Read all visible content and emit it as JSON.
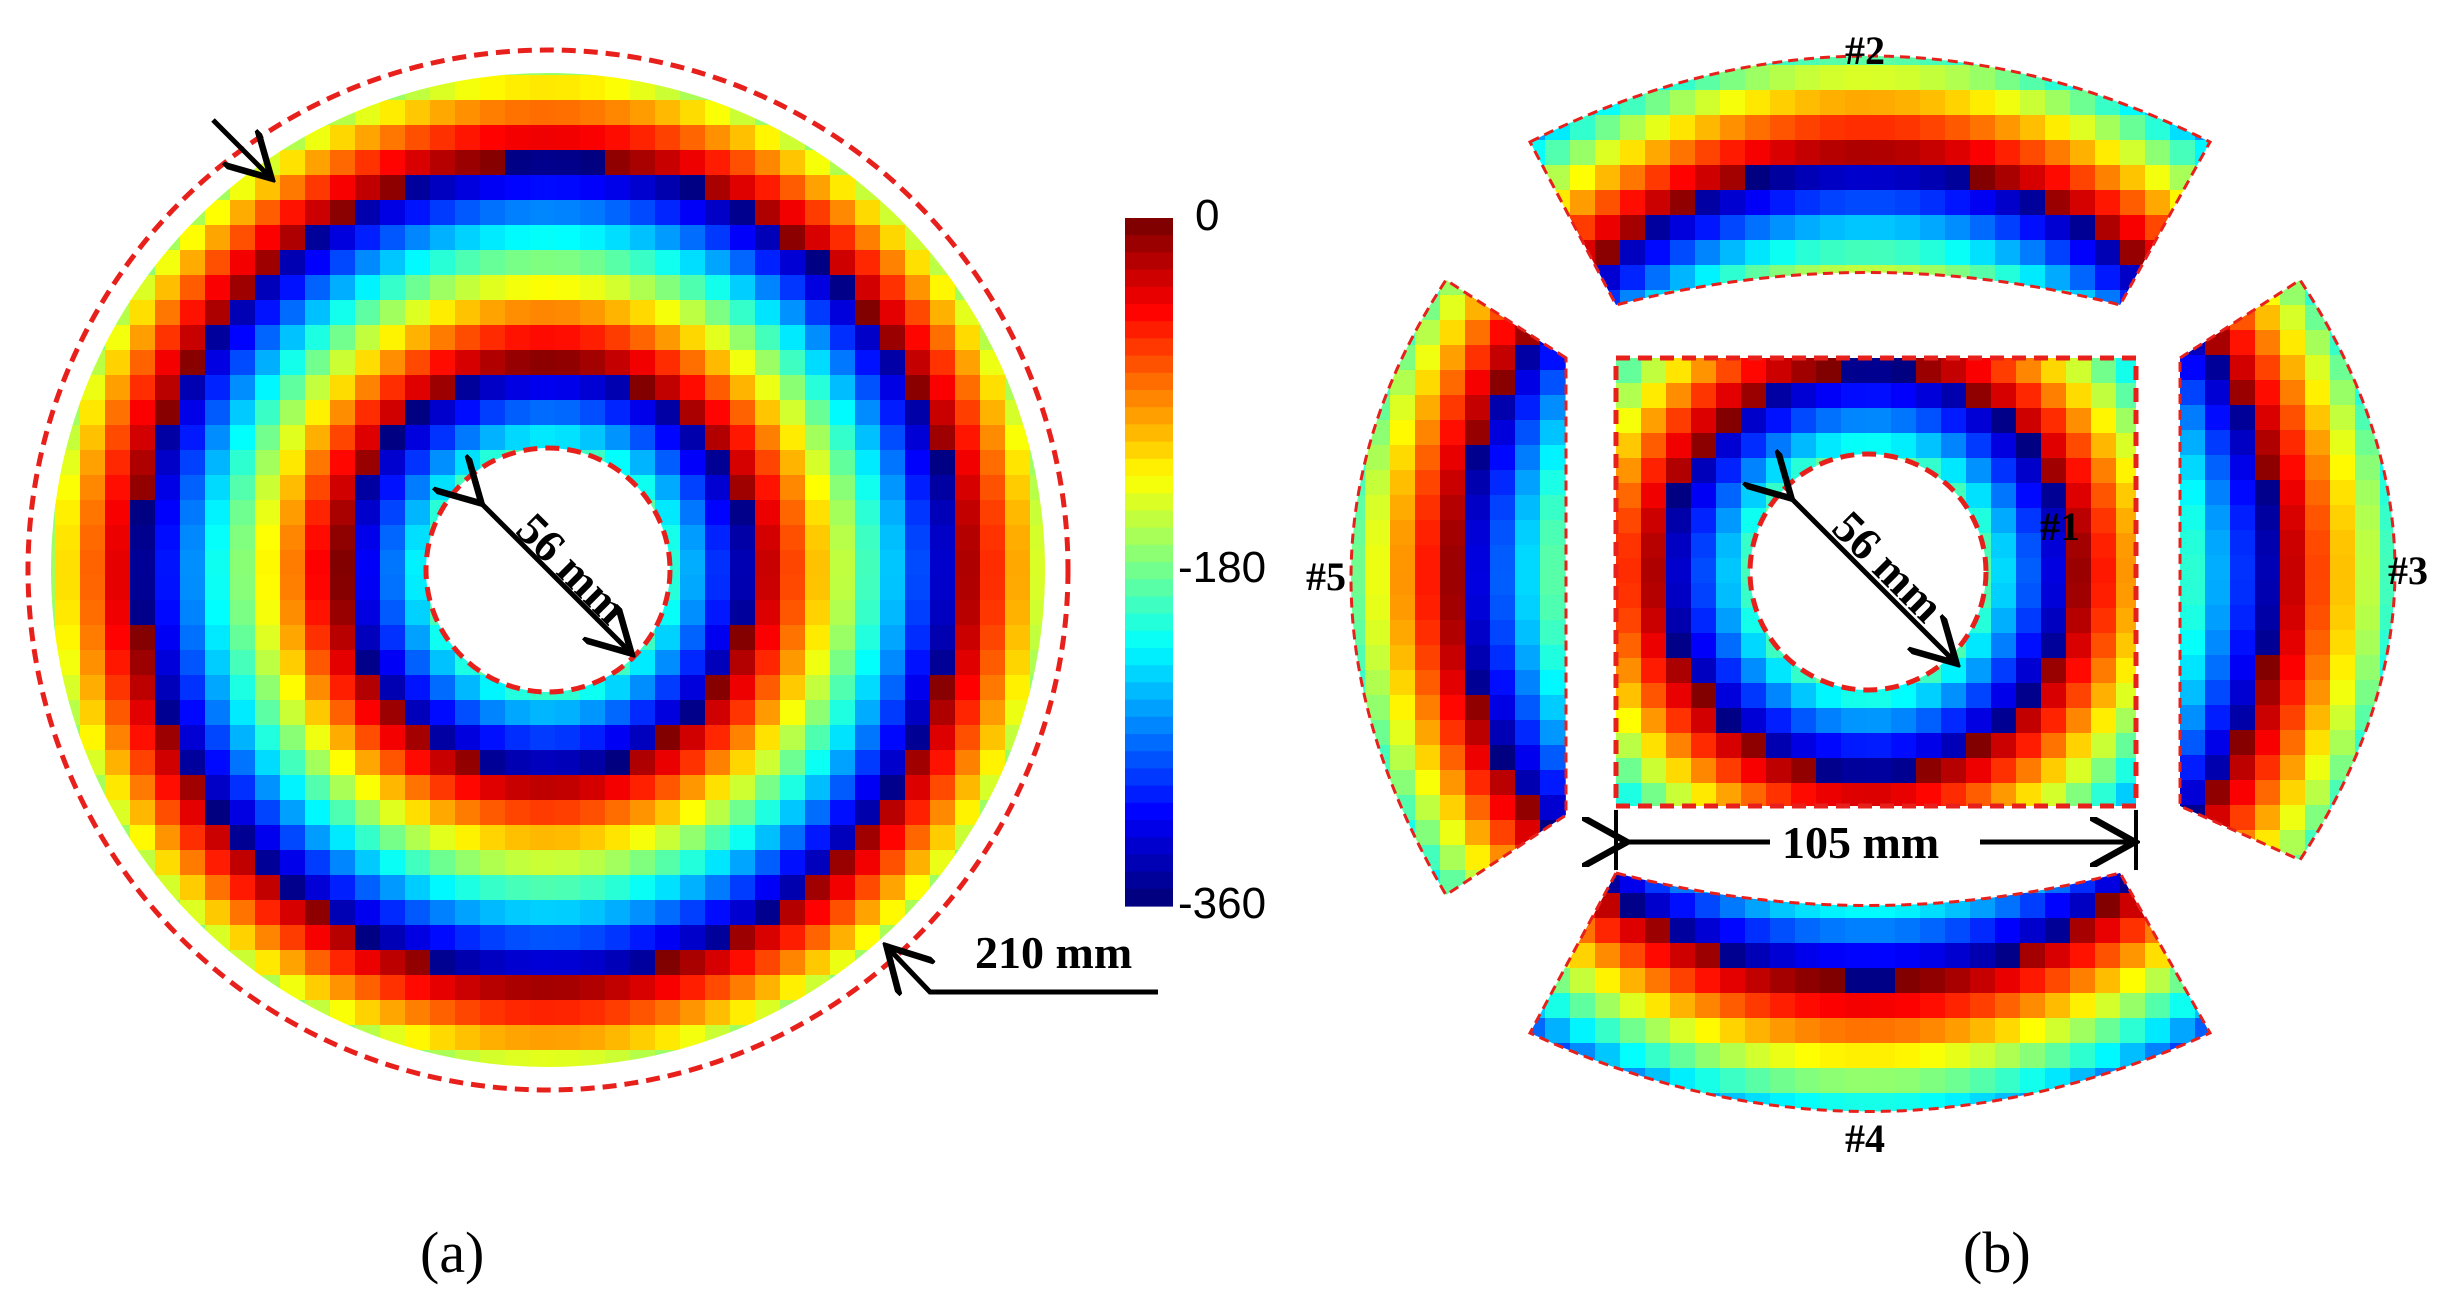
{
  "figure": {
    "panel_a": {
      "caption": "(a)",
      "inner_dimension": "56 mm",
      "outer_dimension": "210 mm"
    },
    "panel_b": {
      "caption": "(b)",
      "inner_dimension": "56 mm",
      "square_dimension": "105 mm",
      "segments": [
        "#1",
        "#2",
        "#3",
        "#4",
        "#5"
      ]
    },
    "colorbar": {
      "ticks": [
        "0",
        "-180",
        "-360"
      ],
      "min": -360,
      "max": 0,
      "colormap": "jet"
    },
    "colors": {
      "outline": "#e8201c",
      "arrow": "#000000"
    }
  }
}
